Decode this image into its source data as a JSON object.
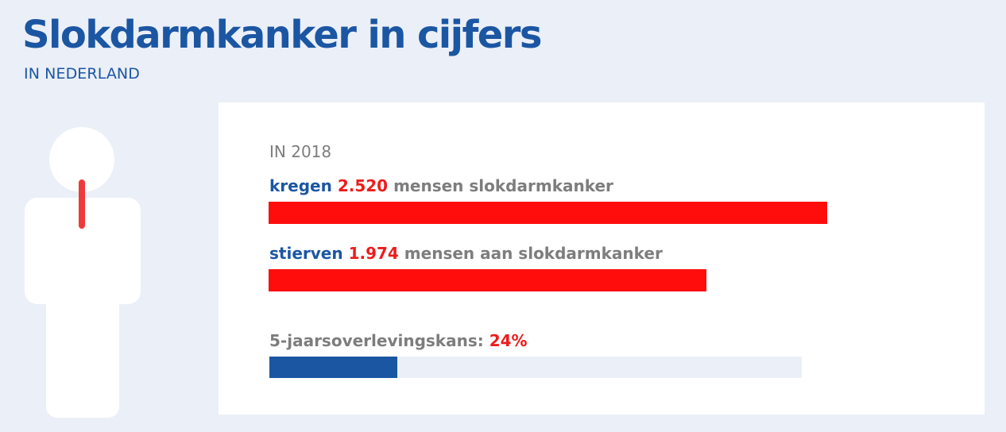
{
  "header": {
    "title": "Slokdarmkanker in cijfers",
    "subtitle": "IN NEDERLAND"
  },
  "colors": {
    "blue": "#1b56a3",
    "red": "#ff0d0d",
    "gray": "#7d7d7d",
    "background": "#ebeff7"
  },
  "card": {
    "year_label": "IN 2018",
    "incidence": {
      "verb": "kregen",
      "value": "2.520",
      "rest": "mensen slokdarmkanker"
    },
    "mortality": {
      "verb": "stierven",
      "value": "1.974",
      "rest": "mensen aan slokdarmkanker"
    },
    "survival": {
      "label": "5-jaarsoverlevingskans:",
      "value": "24%"
    }
  },
  "chart_data": [
    {
      "type": "bar",
      "orientation": "horizontal",
      "title": "IN 2018",
      "categories": [
        "kregen",
        "stierven"
      ],
      "values": [
        2520,
        1974
      ],
      "xlim": [
        0,
        2520
      ],
      "unit": "mensen"
    },
    {
      "type": "bar",
      "orientation": "horizontal",
      "categories": [
        "5-jaarsoverlevingskans"
      ],
      "values": [
        24
      ],
      "xlim": [
        0,
        100
      ],
      "unit": "%"
    }
  ]
}
